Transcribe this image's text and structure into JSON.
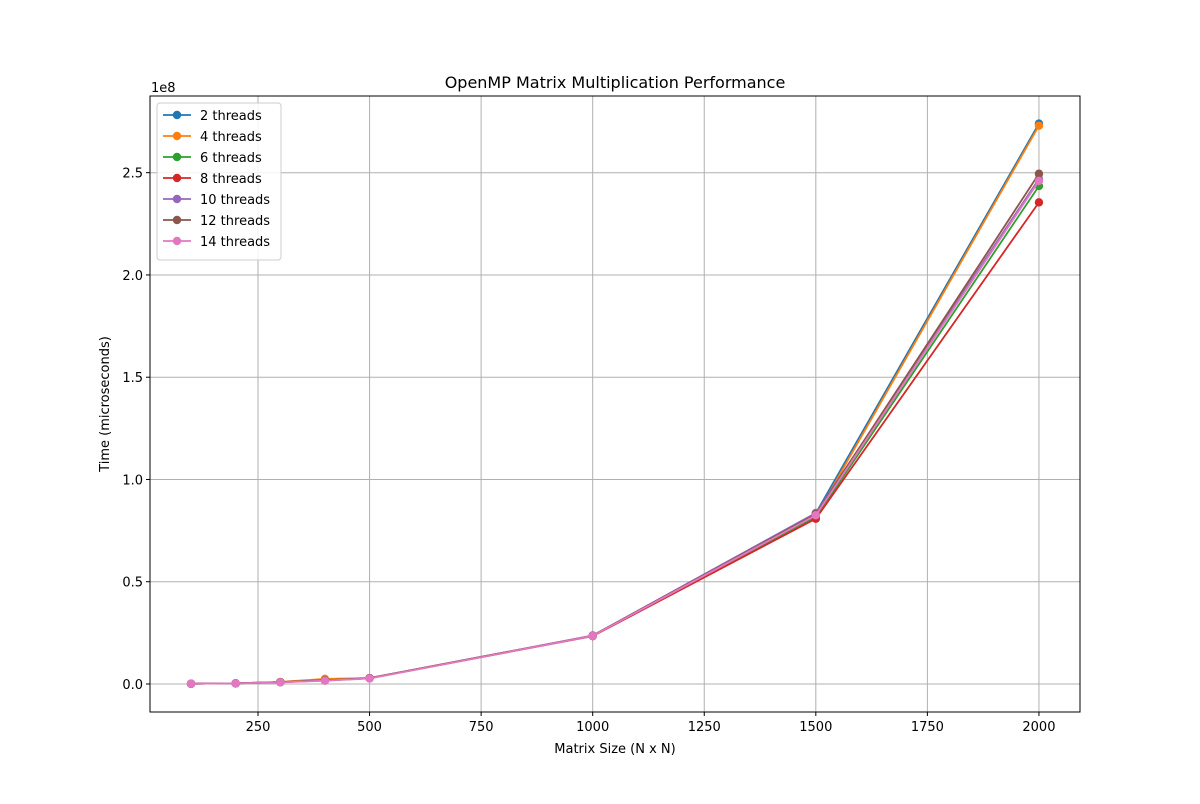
{
  "chart_data": {
    "type": "line",
    "title": "OpenMP Matrix Multiplication Performance",
    "xlabel": "Matrix Size (N x N)",
    "ylabel": "Time (microseconds)",
    "y_offset_label": "1e8",
    "y_scale_factor": 100000000,
    "xlim": [
      8,
      2092
    ],
    "ylim": [
      -13700000,
      287500000
    ],
    "x_ticks": [
      250,
      500,
      750,
      1000,
      1250,
      1500,
      1750,
      2000
    ],
    "x_tick_labels": [
      "250",
      "500",
      "750",
      "1000",
      "1250",
      "1500",
      "1750",
      "2000"
    ],
    "y_ticks": [
      0,
      50000000,
      100000000,
      150000000,
      200000000,
      250000000
    ],
    "y_tick_labels": [
      "0.0",
      "0.5",
      "1.0",
      "1.5",
      "2.0",
      "2.5"
    ],
    "grid": true,
    "legend_position": "top-left",
    "x": [
      100,
      200,
      300,
      400,
      500,
      1000,
      1500,
      2000
    ],
    "series": [
      {
        "name": "2 threads",
        "color": "#1f77b4",
        "values": [
          100000,
          300000,
          900000,
          1800000,
          2900000,
          23600000,
          83500000,
          274000000
        ]
      },
      {
        "name": "4 threads",
        "color": "#ff7f0e",
        "values": [
          100000,
          300000,
          1000000,
          2500000,
          2900000,
          23600000,
          82000000,
          273000000
        ]
      },
      {
        "name": "6 threads",
        "color": "#2ca02c",
        "values": [
          100000,
          300000,
          900000,
          1800000,
          2800000,
          23500000,
          81500000,
          243500000
        ]
      },
      {
        "name": "8 threads",
        "color": "#d62728",
        "values": [
          100000,
          300000,
          900000,
          1700000,
          2800000,
          23400000,
          80800000,
          235500000
        ]
      },
      {
        "name": "10 threads",
        "color": "#9467bd",
        "values": [
          100000,
          300000,
          900000,
          1700000,
          2800000,
          23700000,
          83600000,
          247000000
        ]
      },
      {
        "name": "12 threads",
        "color": "#8c564b",
        "values": [
          100000,
          300000,
          900000,
          1800000,
          2800000,
          23600000,
          83000000,
          249500000
        ]
      },
      {
        "name": "14 threads",
        "color": "#e377c2",
        "values": [
          100000,
          300000,
          800000,
          1600000,
          2700000,
          23500000,
          82500000,
          246000000
        ]
      }
    ]
  }
}
